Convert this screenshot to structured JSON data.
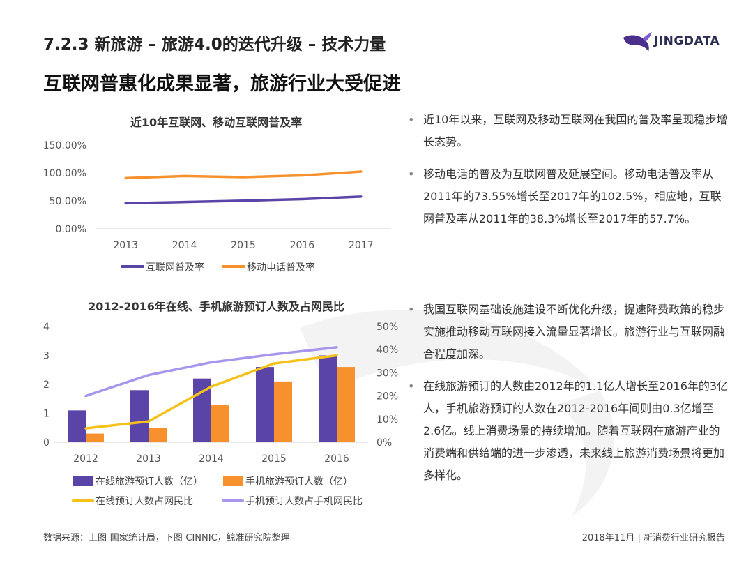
{
  "header": {
    "section_title": "7.2.3 新旅游 – 旅游4.0的迭代升级 – 技术力量",
    "headline": "互联网普惠化成果显著，旅游行业大受促进",
    "logo_text": "JINGDATA"
  },
  "colors": {
    "purple": "#5b44a8",
    "orange": "#f7912d",
    "yellow": "#f5c21b",
    "lavender": "#a796ec"
  },
  "chart_data": [
    {
      "type": "line",
      "title": "近10年互联网、移动互联网普及率",
      "categories": [
        "2013",
        "2014",
        "2015",
        "2016",
        "2017"
      ],
      "y_ticks": [
        "0.00%",
        "50.00%",
        "100.00%",
        "150.00%"
      ],
      "ylim": [
        0,
        150
      ],
      "grid": false,
      "legend": "bottom",
      "series": [
        {
          "name": "互联网普及率",
          "values": [
            45.8,
            47.9,
            50.3,
            53.2,
            57.7
          ],
          "color": "#5b44a8"
        },
        {
          "name": "移动电话普及率",
          "values": [
            90.8,
            94.5,
            92.5,
            95.6,
            102.5
          ],
          "color": "#f7912d"
        }
      ]
    },
    {
      "type": "bar",
      "title": "2012-2016年在线、手机旅游预订人数及占网民比",
      "categories": [
        "2012",
        "2013",
        "2014",
        "2015",
        "2016"
      ],
      "y_ticks": [
        "0",
        "1",
        "2",
        "3",
        "4"
      ],
      "ylim": [
        0,
        4
      ],
      "y2_ticks": [
        "0%",
        "10%",
        "20%",
        "30%",
        "40%",
        "50%"
      ],
      "y2lim": [
        0,
        50
      ],
      "grid": false,
      "legend": "bottom",
      "bar_series": [
        {
          "name": "在线旅游预订人数（亿）",
          "values": [
            1.1,
            1.8,
            2.2,
            2.6,
            3.0
          ],
          "color": "#5b44a8"
        },
        {
          "name": "手机旅游预订人数（亿）",
          "values": [
            0.3,
            0.5,
            1.3,
            2.1,
            2.6
          ],
          "color": "#f7912d"
        }
      ],
      "line_series": [
        {
          "name": "在线预订人数占网民比",
          "values": [
            6,
            9,
            24,
            34,
            37.5
          ],
          "color": "#f5c21b"
        },
        {
          "name": "手机预订人数占手机网民比",
          "values": [
            20,
            29,
            34.5,
            38,
            41
          ],
          "color": "#a796ec"
        }
      ]
    }
  ],
  "bullets_top": [
    "近10年以来，互联网及移动互联网在我国的普及率呈现稳步增长态势。",
    "移动电话的普及为互联网普及延展空间。移动电话普及率从2011年的73.55%增长至2017年的102.5%，相应地，互联网普及率从2011年的38.3%增长至2017年的57.7%。"
  ],
  "bullets_bottom": [
    "我国互联网基础设施建设不断优化升级，提速降费政策的稳步实施推动移动互联网接入流量显著增长。旅游行业与互联网融合程度加深。",
    "在线旅游预订的人数由2012年的1.1亿人增长至2016年的3亿人，手机旅游预订的人数在2012-2016年间则由0.3亿增至2.6亿。线上消费场景的持续增加。随着互联网在旅游产业的消费端和供给端的进一步渗透，未来线上旅游消费场景将更加多样化。"
  ],
  "footer": {
    "source": "数据来源：上图-国家统计局，下图-CINNIC，鲸准研究院整理",
    "report": "2018年11月 | 新消费行业研究报告"
  }
}
